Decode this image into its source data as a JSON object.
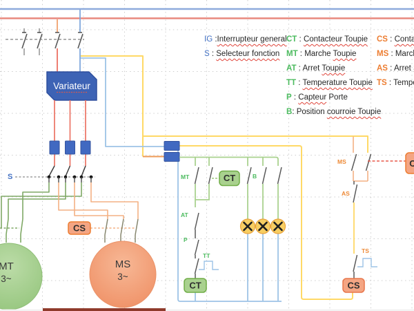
{
  "colors": {
    "bus_blue": "#8EAADC",
    "bus_red": "#E9897E",
    "shape_royal_blue": "#4169C1",
    "variateur_blue": "#3D63B5",
    "wire_red": "#EC7063",
    "wire_yellow": "#FFD966",
    "wire_lightblue": "#9DC3E6",
    "wire_control_green": "#A9D18E",
    "wire_motor_green": "#7FA865",
    "wire_orange": "#F4B183",
    "blade_gray": "#595959",
    "legend_blue": "#4472C4",
    "legend_green": "#4CBB5F",
    "legend_orange": "#ED7D31",
    "lamp_fill": "#F7CE63",
    "lamp_border": "#E9A13B",
    "motor_mt_fill": "#A9D18E",
    "motor_ms_fill": "#F4A582",
    "spellcheck_red": "#E0443A",
    "bottom_bar_dark_red": "#8F3A2B"
  },
  "diagram": {
    "variateur": "Variateur",
    "s": "S",
    "cs_switch": "CS",
    "ct_aux": "CT",
    "ct_coil": "CT",
    "cs_coil": "CS",
    "edge_box": "C",
    "contacts": {
      "mt": "MT",
      "b": "B",
      "at": "AT",
      "p": "P",
      "tt": "TT",
      "ms": "MS",
      "as": "AS",
      "ts": "TS"
    },
    "motors": {
      "mt": {
        "name": "MT",
        "phase": "3~"
      },
      "ms": {
        "name": "MS",
        "phase": "3~"
      }
    }
  },
  "legend": {
    "columns": [
      {
        "items": [
          {
            "abbr": "IG",
            "color": "blue",
            "sep": " :",
            "parts": [
              {
                "t": "Interrupteur general",
                "w": true
              }
            ]
          },
          {
            "abbr": "S",
            "color": "blue",
            "sep": " : ",
            "parts": [
              {
                "t": "Selecteur fonction",
                "w": true
              }
            ]
          }
        ]
      },
      {
        "items": [
          {
            "abbr": "CT",
            "color": "green",
            "sep": " : ",
            "parts": [
              {
                "t": "Contacteur Toupie",
                "w": true
              }
            ]
          },
          {
            "abbr": "MT",
            "color": "green",
            "sep": " : ",
            "parts": [
              {
                "t": "Marche ",
                "w": false
              },
              {
                "t": "Toupie",
                "w": true
              }
            ]
          },
          {
            "abbr": "AT",
            "color": "green",
            "sep": " : ",
            "parts": [
              {
                "t": "Arret ",
                "w": false
              },
              {
                "t": "Toupie",
                "w": true
              }
            ]
          },
          {
            "abbr": "TT",
            "color": "green",
            "sep": " : ",
            "parts": [
              {
                "t": "Temperature Toupie",
                "w": true
              }
            ]
          },
          {
            "abbr": "P",
            "color": "green",
            "sep": " : ",
            "parts": [
              {
                "t": "Capteur",
                "w": true
              },
              {
                "t": " Porte",
                "w": false
              }
            ]
          },
          {
            "abbr": "B",
            "color": "green",
            "sep": ": ",
            "parts": [
              {
                "t": "Position ",
                "w": false
              },
              {
                "t": "courroie Toupie",
                "w": true
              }
            ]
          }
        ]
      },
      {
        "items": [
          {
            "abbr": "CS",
            "color": "orange",
            "sep": " : ",
            "parts": [
              {
                "t": "Contac",
                "w": true
              }
            ]
          },
          {
            "abbr": "MS",
            "color": "orange",
            "sep": " : ",
            "parts": [
              {
                "t": "March",
                "w": false
              }
            ]
          },
          {
            "abbr": "AS",
            "color": "orange",
            "sep": " : ",
            "parts": [
              {
                "t": "Arret S",
                "w": false
              }
            ]
          },
          {
            "abbr": "TS",
            "color": "orange",
            "sep": " : ",
            "parts": [
              {
                "t": "Temper",
                "w": false
              }
            ]
          }
        ]
      }
    ]
  }
}
